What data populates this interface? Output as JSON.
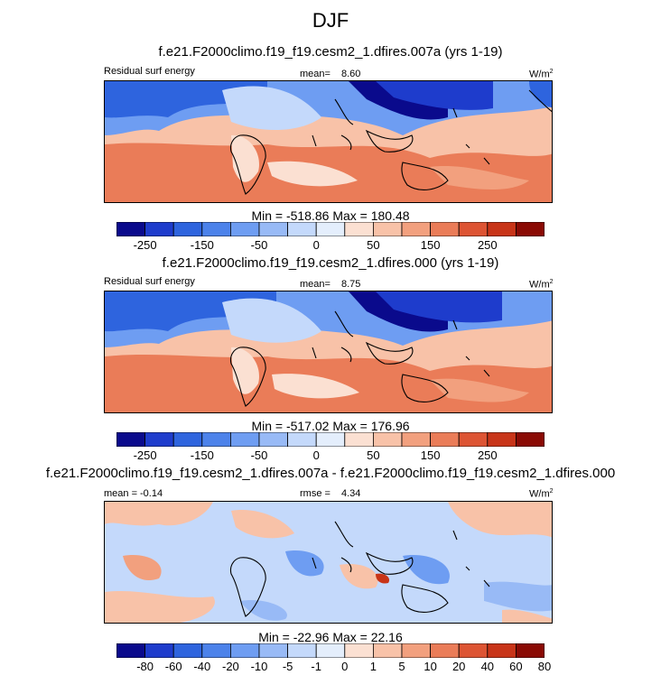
{
  "figure": {
    "title": "DJF"
  },
  "chart_data": [
    {
      "type": "heatmap",
      "title": "f.e21.F2000climo.f19_f19.cesm2_1.dfires.007a (yrs 1-19)",
      "variable_label": "Residual surf energy",
      "mean_label": "mean=",
      "mean_value": "8.60",
      "units": "W/m2",
      "stats": "Min = -518.86 Max = 180.48",
      "colorbar": {
        "levels": [
          -250,
          -200,
          -150,
          -100,
          -50,
          -25,
          0,
          25,
          50,
          100,
          150,
          200,
          250
        ],
        "tick_labels": [
          "-250",
          "-150",
          "-50",
          "0",
          "50",
          "150",
          "250"
        ],
        "colors": [
          "#0a0a8c",
          "#1e3ccc",
          "#2e64de",
          "#4c82ea",
          "#6e9df2",
          "#98baf6",
          "#c4d9fb",
          "#e4eefc",
          "#fbe0d2",
          "#f8c2a8",
          "#f2a07e",
          "#ea7c58",
          "#dd5433",
          "#c83418",
          "#8a0a04"
        ]
      }
    },
    {
      "type": "heatmap",
      "title": "f.e21.F2000climo.f19_f19.cesm2_1.dfires.000 (yrs 1-19)",
      "variable_label": "Residual surf energy",
      "mean_label": "mean=",
      "mean_value": "8.75",
      "units": "W/m2",
      "stats": "Min = -517.02 Max = 176.96",
      "colorbar": {
        "tick_labels": [
          "-250",
          "-150",
          "-50",
          "0",
          "50",
          "150",
          "250"
        ],
        "colors": [
          "#0a0a8c",
          "#1e3ccc",
          "#2e64de",
          "#4c82ea",
          "#6e9df2",
          "#98baf6",
          "#c4d9fb",
          "#e4eefc",
          "#fbe0d2",
          "#f8c2a8",
          "#f2a07e",
          "#ea7c58",
          "#dd5433",
          "#c83418",
          "#8a0a04"
        ]
      }
    },
    {
      "type": "heatmap",
      "title": "f.e21.F2000climo.f19_f19.cesm2_1.dfires.007a - f.e21.F2000climo.f19_f19.cesm2_1.dfires.000",
      "mean_label": "mean =",
      "mean_value": "-0.14",
      "rmse_label": "rmse =",
      "rmse_value": "4.34",
      "units": "W/m2",
      "stats": "Min = -22.96 Max = 22.16",
      "colorbar": {
        "tick_labels": [
          "-80",
          "-60",
          "-40",
          "-20",
          "-10",
          "-5",
          "-1",
          "0",
          "1",
          "5",
          "10",
          "20",
          "40",
          "60",
          "80"
        ],
        "colors": [
          "#0a0a8c",
          "#1e3ccc",
          "#2e64de",
          "#4c82ea",
          "#6e9df2",
          "#98baf6",
          "#c4d9fb",
          "#e4eefc",
          "#fbe0d2",
          "#f8c2a8",
          "#f2a07e",
          "#ea7c58",
          "#dd5433",
          "#c83418",
          "#8a0a04"
        ]
      }
    }
  ]
}
